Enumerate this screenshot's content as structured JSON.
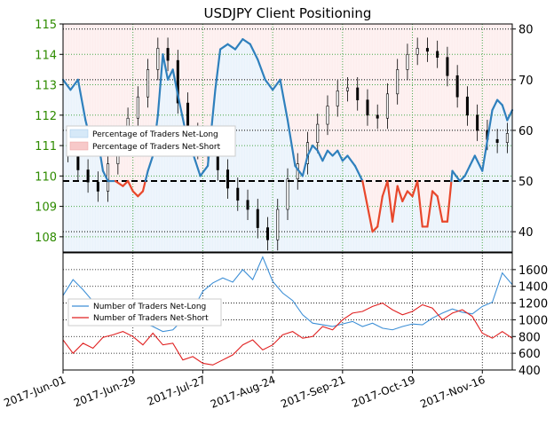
{
  "chart_data": [
    {
      "type": "line",
      "title": "USDJPY Client Positioning",
      "x_ticks": [
        "2017-Jun-01",
        "2017-Jun-29",
        "2017-Jul-27",
        "2017-Aug-24",
        "2017-Sep-21",
        "2017-Oct-19",
        "2017-Nov-16"
      ],
      "x_range": [
        0,
        180
      ],
      "left_axis": {
        "ticks": [
          108,
          109,
          110,
          111,
          112,
          113,
          114,
          115
        ],
        "range": [
          107.5,
          115
        ],
        "color": "#2e8b00"
      },
      "right_axis": {
        "ticks": [
          40,
          50,
          60,
          70,
          80
        ],
        "range": [
          36,
          81
        ]
      },
      "reference_line": {
        "value": 50,
        "axis": "right",
        "style": "dashed",
        "color": "#000000"
      },
      "grid": true,
      "legend": {
        "position": "left-middle",
        "entries": [
          {
            "label": "Percentage of Traders Net-Long",
            "color": "#d6e9f8"
          },
          {
            "label": "Percentage of Traders Net-Short",
            "color": "#f7c9c9"
          }
        ]
      },
      "colors": {
        "line_above_50": "#2f80bd",
        "line_below_50": "#e8472b",
        "candle": "#000000"
      },
      "series": [
        {
          "role": "positioning_line",
          "axis": "right",
          "x": [
            0,
            3,
            6,
            9,
            12,
            14,
            16,
            18,
            21,
            24,
            26,
            28,
            30,
            32,
            34,
            36,
            38,
            40,
            42,
            44,
            46,
            49,
            51,
            53,
            55,
            58,
            61,
            63,
            66,
            69,
            72,
            75,
            78,
            81,
            84,
            87,
            90,
            93,
            96,
            98,
            100,
            102,
            104,
            106,
            108,
            110,
            112,
            114,
            117,
            120,
            122,
            124,
            126,
            128,
            130,
            132,
            134,
            136,
            138,
            140,
            142,
            144,
            146,
            148,
            150,
            152,
            154,
            156,
            159,
            161,
            163,
            165,
            168,
            170,
            172,
            174,
            176,
            178,
            180
          ],
          "y": [
            70,
            68,
            70,
            62,
            56,
            58,
            52,
            50,
            50,
            49,
            50,
            48,
            47,
            48,
            52,
            55,
            63,
            75,
            70,
            72,
            67,
            60,
            57,
            54,
            51,
            53,
            68,
            76,
            77,
            76,
            78,
            77,
            74,
            70,
            68,
            70,
            62,
            53,
            51,
            55,
            57,
            56,
            54,
            56,
            55,
            56,
            54,
            55,
            53,
            50,
            45,
            40,
            41,
            47,
            50,
            42,
            49,
            46,
            48,
            47,
            50,
            41,
            41,
            48,
            47,
            42,
            42,
            52,
            50,
            51,
            53,
            55,
            52,
            58,
            64,
            66,
            65,
            62,
            64
          ]
        },
        {
          "role": "price_candles_close",
          "axis": "left",
          "x": [
            0,
            4,
            8,
            12,
            16,
            20,
            24,
            28,
            32,
            36,
            40,
            44,
            48,
            52,
            56,
            60,
            64,
            68,
            72,
            76,
            80,
            84,
            88,
            92,
            96,
            100,
            104,
            108,
            112,
            116,
            120,
            124,
            128,
            132,
            136,
            140,
            144,
            148,
            152,
            156,
            160,
            164,
            168,
            172,
            176,
            180
          ],
          "y": [
            111.2,
            110.8,
            110.2,
            109.8,
            109.5,
            110.4,
            111.3,
            111.9,
            112.6,
            113.5,
            114.2,
            113.8,
            112.4,
            111.4,
            110.9,
            110.8,
            110.2,
            109.6,
            109.2,
            108.9,
            108.3,
            107.9,
            108.9,
            109.9,
            110.4,
            111.1,
            111.7,
            112.3,
            112.8,
            112.9,
            112.5,
            112.0,
            111.9,
            112.7,
            113.5,
            114.0,
            114.2,
            114.1,
            113.9,
            113.3,
            112.6,
            112.0,
            111.5,
            111.2,
            111.1,
            111.4
          ]
        }
      ]
    },
    {
      "type": "line",
      "right_axis": {
        "ticks": [
          400,
          600,
          800,
          1000,
          1200,
          1400,
          1600
        ],
        "range": [
          400,
          1800
        ]
      },
      "grid": true,
      "legend": {
        "position": "left-middle",
        "entries": [
          {
            "label": "Number of Traders Net-Long",
            "color": "#3d8fd6"
          },
          {
            "label": "Number of Traders Net-Short",
            "color": "#e02020"
          }
        ]
      },
      "series": [
        {
          "name": "Number of Traders Net-Long",
          "color": "#3d8fd6",
          "x": [
            0,
            4,
            8,
            12,
            16,
            20,
            24,
            28,
            32,
            36,
            40,
            44,
            48,
            52,
            56,
            60,
            64,
            68,
            72,
            76,
            80,
            84,
            88,
            92,
            96,
            100,
            104,
            108,
            112,
            116,
            120,
            124,
            128,
            132,
            136,
            140,
            144,
            148,
            152,
            156,
            160,
            164,
            168,
            172,
            176,
            180
          ],
          "y": [
            1290,
            1480,
            1360,
            1220,
            1180,
            1080,
            1020,
            980,
            960,
            920,
            860,
            880,
            1000,
            1120,
            1340,
            1440,
            1500,
            1450,
            1600,
            1480,
            1750,
            1460,
            1320,
            1230,
            1060,
            960,
            940,
            920,
            950,
            980,
            920,
            960,
            900,
            880,
            920,
            950,
            940,
            1020,
            1080,
            1130,
            1090,
            1070,
            1160,
            1210,
            1560,
            1420
          ]
        },
        {
          "name": "Number of Traders Net-Short",
          "color": "#e02020",
          "x": [
            0,
            4,
            8,
            12,
            16,
            20,
            24,
            28,
            32,
            36,
            40,
            44,
            48,
            52,
            56,
            60,
            64,
            68,
            72,
            76,
            80,
            84,
            88,
            92,
            96,
            100,
            104,
            108,
            112,
            116,
            120,
            124,
            128,
            132,
            136,
            140,
            144,
            148,
            152,
            156,
            160,
            164,
            168,
            172,
            176,
            180
          ],
          "y": [
            760,
            600,
            720,
            660,
            790,
            820,
            860,
            800,
            700,
            840,
            700,
            720,
            520,
            560,
            480,
            460,
            520,
            580,
            700,
            760,
            640,
            700,
            820,
            860,
            780,
            800,
            920,
            880,
            1000,
            1080,
            1100,
            1160,
            1200,
            1120,
            1060,
            1100,
            1180,
            1140,
            1000,
            1080,
            1120,
            1040,
            840,
            780,
            860,
            780
          ]
        }
      ]
    }
  ]
}
